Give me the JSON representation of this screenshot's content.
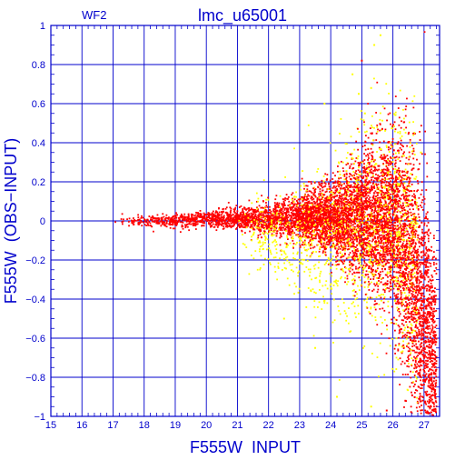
{
  "chart_data": {
    "type": "scatter",
    "panel_label": "WF2",
    "title": "lmc_u65001",
    "xlabel": "F555W  INPUT",
    "ylabel": "F555W  (OBS−INPUT)",
    "xlim": [
      15,
      27.5
    ],
    "ylim": [
      -1,
      1
    ],
    "x_ticks": [
      15,
      16,
      17,
      18,
      19,
      20,
      21,
      22,
      23,
      24,
      25,
      26,
      27
    ],
    "y_ticks": [
      -1,
      -0.8,
      -0.6,
      -0.4,
      -0.2,
      0,
      0.2,
      0.4,
      0.6,
      0.8,
      1
    ],
    "x_tick_labels": [
      "15",
      "16",
      "17",
      "18",
      "19",
      "20",
      "21",
      "22",
      "23",
      "24",
      "25",
      "26",
      "27"
    ],
    "y_tick_labels": [
      "−1",
      "−0.8",
      "−0.6",
      "−0.4",
      "−0.2",
      "0",
      "0.2",
      "0.4",
      "0.6",
      "0.8",
      "1"
    ],
    "grid": true,
    "colors": {
      "axis": "#0000cc",
      "grid": "#0000cc",
      "red_series": "#ff0000",
      "yellow_series": "#ffff00"
    },
    "series": [
      {
        "color": "#ff0000",
        "trend": [
          {
            "x": 16.9,
            "mean": 0.0,
            "spread": 0.012
          },
          {
            "x": 18,
            "mean": 0.0,
            "spread": 0.015
          },
          {
            "x": 19,
            "mean": 0.0,
            "spread": 0.017
          },
          {
            "x": 20,
            "mean": 0.01,
            "spread": 0.02
          },
          {
            "x": 21,
            "mean": 0.01,
            "spread": 0.03
          },
          {
            "x": 22,
            "mean": 0.01,
            "spread": 0.04
          },
          {
            "x": 23,
            "mean": 0.01,
            "spread": 0.06
          },
          {
            "x": 24,
            "mean": 0.01,
            "spread": 0.09
          },
          {
            "x": 25,
            "mean": 0.02,
            "spread": 0.15
          },
          {
            "x": 26,
            "mean": 0.0,
            "spread": 0.22
          },
          {
            "x": 26.5,
            "mean": -0.2,
            "spread": 0.3
          },
          {
            "x": 27,
            "mean": -0.5,
            "spread": 0.35
          },
          {
            "x": 27.4,
            "mean": -0.75,
            "spread": 0.25
          }
        ]
      },
      {
        "color": "#ffff00",
        "trend": [
          {
            "x": 21,
            "mean": -0.05,
            "spread": 0.07
          },
          {
            "x": 22,
            "mean": -0.08,
            "spread": 0.1
          },
          {
            "x": 23,
            "mean": -0.1,
            "spread": 0.15
          },
          {
            "x": 24,
            "mean": -0.1,
            "spread": 0.2
          },
          {
            "x": 25,
            "mean": -0.05,
            "spread": 0.25
          },
          {
            "x": 26,
            "mean": 0.0,
            "spread": 0.3
          },
          {
            "x": 26.8,
            "mean": -0.3,
            "spread": 0.35
          }
        ]
      }
    ],
    "outliers": [
      {
        "x": 25.6,
        "y": 0.95,
        "color": "#ffff00"
      },
      {
        "x": 25.4,
        "y": 0.9,
        "color": "#ffff00"
      },
      {
        "x": 25.0,
        "y": 0.82,
        "color": "#ff0000"
      },
      {
        "x": 24.7,
        "y": 0.75,
        "color": "#ffff00"
      },
      {
        "x": 25.3,
        "y": 0.68,
        "color": "#ffff00"
      },
      {
        "x": 24.9,
        "y": 0.65,
        "color": "#ffff00"
      },
      {
        "x": 23.8,
        "y": 0.6,
        "color": "#ffff00"
      },
      {
        "x": 25.1,
        "y": 0.55,
        "color": "#ffff00"
      },
      {
        "x": 26.9,
        "y": 0.35,
        "color": "#ffff00"
      },
      {
        "x": 22.5,
        "y": -0.5,
        "color": "#ffff00"
      },
      {
        "x": 23.5,
        "y": -0.65,
        "color": "#ffff00"
      },
      {
        "x": 24.2,
        "y": -0.9,
        "color": "#ffff00"
      },
      {
        "x": 25.3,
        "y": -0.95,
        "color": "#ffff00"
      },
      {
        "x": 26.4,
        "y": -0.92,
        "color": "#ff0000"
      },
      {
        "x": 25.8,
        "y": -0.97,
        "color": "#ff0000"
      }
    ]
  }
}
